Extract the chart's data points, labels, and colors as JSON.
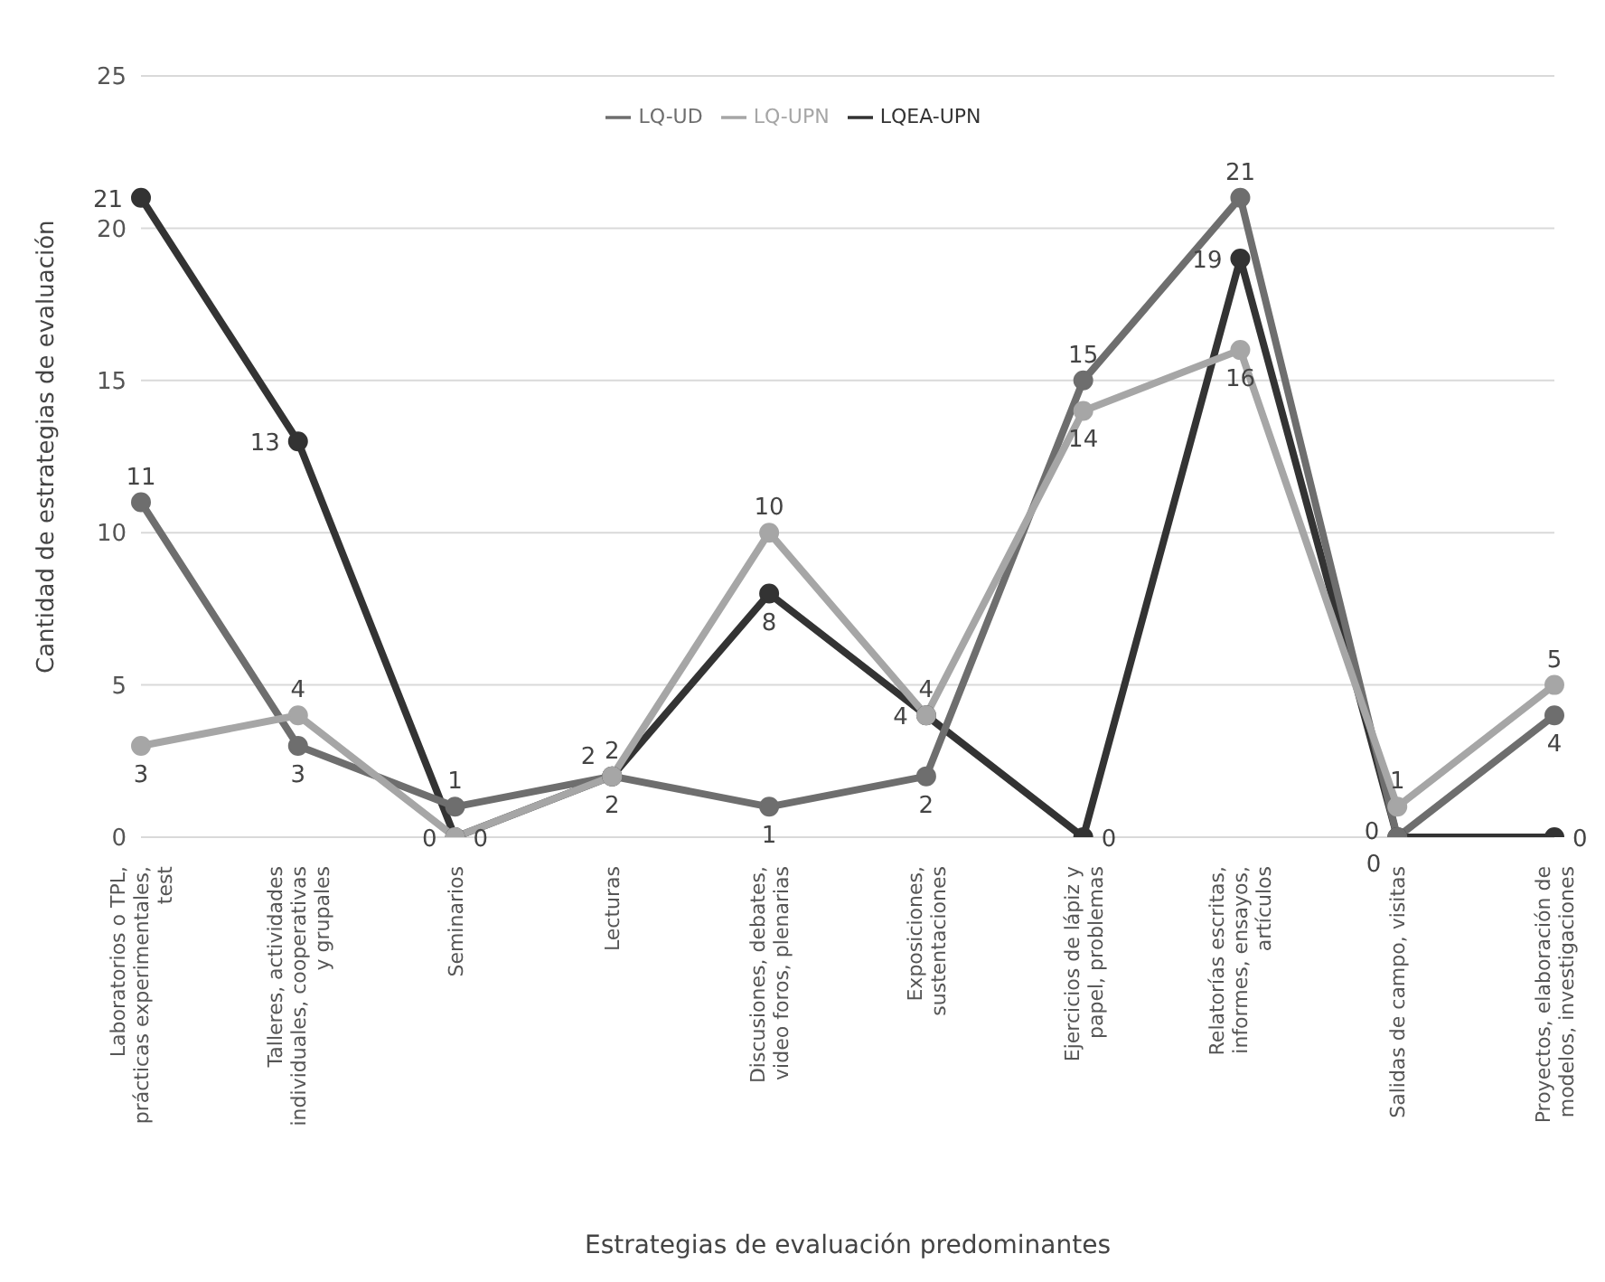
{
  "chart_data": {
    "type": "line",
    "xlabel": "Estrategias de evaluación predominantes",
    "ylabel": "Cantidad de estrategias de evaluación",
    "categories": [
      "Laboratorios o TPL, prácticas experimentales, test",
      "Talleres, actividades individuales, cooperativas y grupales",
      "Seminarios",
      "Lecturas",
      "Discusiones, debates, video foros, plenarias",
      "Exposiciones, sustentaciones",
      "Ejercicios de lápiz y papel, problemas",
      "Relatorías escritas, informes, ensayos, artículos",
      "Salidas de campo, visitas",
      "Proyectos, elaboración de modelos, investigaciones"
    ],
    "series": [
      {
        "name": "LQEA-UPN",
        "color": "#333333",
        "values": [
          21,
          13,
          0,
          2,
          8,
          4,
          0,
          19,
          0,
          0
        ]
      },
      {
        "name": "LQ-UD",
        "color": "#6e6e6e",
        "values": [
          11,
          3,
          1,
          2,
          1,
          2,
          15,
          21,
          0,
          4
        ]
      },
      {
        "name": "LQ-UPN",
        "color": "#a6a6a6",
        "values": [
          3,
          4,
          0,
          2,
          10,
          4,
          14,
          16,
          1,
          5
        ]
      }
    ],
    "ylim": [
      0,
      25
    ],
    "yticks": [
      0,
      5,
      10,
      15,
      20,
      25
    ],
    "grid": "y",
    "legend": "top",
    "marker": "circle",
    "line_style": "solid",
    "data_labels": true
  }
}
